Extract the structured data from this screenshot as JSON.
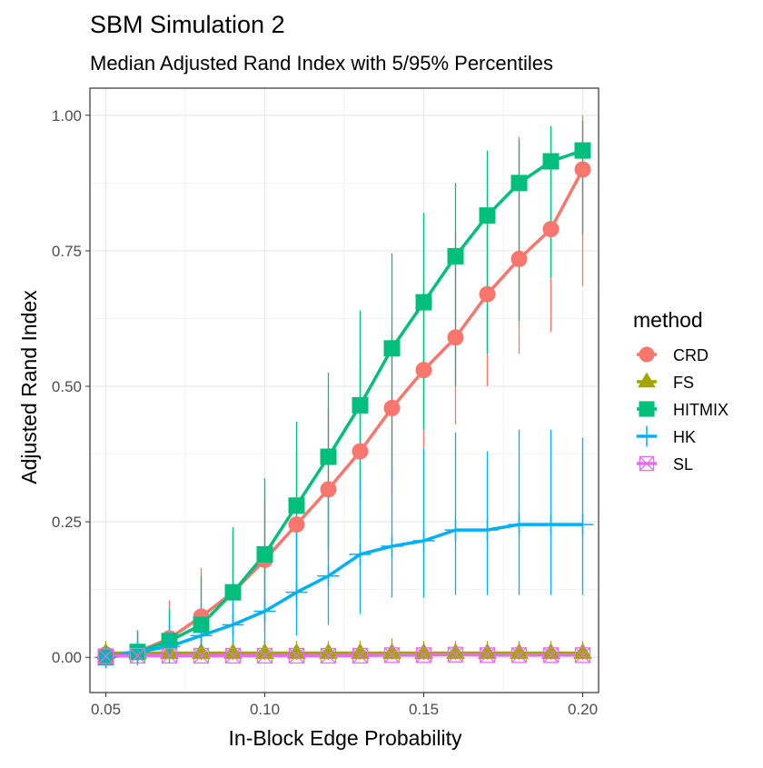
{
  "chart_data": {
    "type": "line",
    "title": "SBM Simulation 2",
    "subtitle": "Median Adjusted Rand Index with 5/95% Percentiles",
    "xlabel": "In-Block Edge Probability",
    "ylabel": "Adjusted Rand Index",
    "xlim": [
      0.045,
      0.205
    ],
    "ylim": [
      -0.065,
      1.05
    ],
    "x_ticks": [
      0.05,
      0.1,
      0.15,
      0.2
    ],
    "x_tick_labels": [
      "0.05",
      "0.10",
      "0.15",
      "0.20"
    ],
    "y_ticks": [
      0.0,
      0.25,
      0.5,
      0.75,
      1.0
    ],
    "y_tick_labels": [
      "0.00",
      "0.25",
      "0.50",
      "0.75",
      "1.00"
    ],
    "grid": true,
    "legend": {
      "title": "method",
      "position": "right"
    },
    "x": [
      0.05,
      0.06,
      0.07,
      0.08,
      0.09,
      0.1,
      0.11,
      0.12,
      0.13,
      0.14,
      0.15,
      0.16,
      0.17,
      0.18,
      0.19,
      0.2
    ],
    "series": [
      {
        "name": "CRD",
        "color": "#F8766D",
        "marker": "circle",
        "median": [
          0.005,
          0.01,
          0.035,
          0.075,
          0.12,
          0.18,
          0.245,
          0.31,
          0.38,
          0.46,
          0.53,
          0.59,
          0.67,
          0.735,
          0.79,
          0.9
        ],
        "lower": [
          -0.01,
          -0.01,
          -0.005,
          0.01,
          0.02,
          0.05,
          0.09,
          0.18,
          0.22,
          0.3,
          0.37,
          0.43,
          0.5,
          0.56,
          0.6,
          0.685
        ],
        "upper": [
          0.02,
          0.05,
          0.105,
          0.165,
          0.23,
          0.29,
          0.38,
          0.46,
          0.55,
          0.6,
          0.7,
          0.78,
          0.86,
          0.96,
          0.98,
          1.0
        ]
      },
      {
        "name": "FS",
        "color": "#A3A500",
        "marker": "triangle",
        "median": [
          0.008,
          0.008,
          0.008,
          0.008,
          0.008,
          0.008,
          0.008,
          0.008,
          0.008,
          0.008,
          0.008,
          0.008,
          0.008,
          0.008,
          0.008,
          0.008
        ],
        "lower": [
          0.0,
          0.0,
          0.0,
          0.0,
          0.0,
          0.0,
          0.0,
          0.0,
          0.0,
          0.0,
          0.0,
          0.0,
          0.0,
          0.0,
          0.0,
          0.0
        ],
        "upper": [
          0.03,
          0.03,
          0.03,
          0.03,
          0.03,
          0.03,
          0.03,
          0.03,
          0.03,
          0.035,
          0.03,
          0.03,
          0.03,
          0.03,
          0.03,
          0.03
        ]
      },
      {
        "name": "HITMIX",
        "color": "#00BF7D",
        "marker": "square",
        "median": [
          0.0,
          0.01,
          0.03,
          0.06,
          0.12,
          0.19,
          0.28,
          0.37,
          0.465,
          0.57,
          0.655,
          0.74,
          0.815,
          0.875,
          0.915,
          0.935
        ],
        "lower": [
          -0.01,
          -0.01,
          0.0,
          0.02,
          0.04,
          0.08,
          0.12,
          0.2,
          0.29,
          0.33,
          0.42,
          0.5,
          0.56,
          0.62,
          0.7,
          0.78
        ],
        "upper": [
          0.02,
          0.045,
          0.09,
          0.15,
          0.24,
          0.33,
          0.435,
          0.525,
          0.64,
          0.745,
          0.82,
          0.875,
          0.935,
          0.955,
          0.98,
          0.99
        ]
      },
      {
        "name": "HK",
        "color": "#00B0F6",
        "marker": "plus",
        "median": [
          0.0,
          0.01,
          0.02,
          0.04,
          0.06,
          0.085,
          0.12,
          0.15,
          0.19,
          0.205,
          0.215,
          0.235,
          0.235,
          0.245,
          0.245,
          0.245
        ],
        "lower": [
          -0.02,
          -0.015,
          -0.01,
          -0.005,
          0.0,
          0.01,
          0.04,
          0.06,
          0.08,
          0.11,
          0.11,
          0.115,
          0.115,
          0.115,
          0.115,
          0.115
        ],
        "upper": [
          0.02,
          0.05,
          0.07,
          0.1,
          0.14,
          0.2,
          0.235,
          0.31,
          0.33,
          0.35,
          0.385,
          0.415,
          0.38,
          0.42,
          0.42,
          0.405
        ]
      },
      {
        "name": "SL",
        "color": "#E76BF3",
        "marker": "boxcross",
        "median": [
          0.002,
          0.003,
          0.003,
          0.003,
          0.003,
          0.003,
          0.003,
          0.003,
          0.003,
          0.004,
          0.004,
          0.005,
          0.004,
          0.004,
          0.004,
          0.004
        ],
        "lower": [
          -0.005,
          -0.005,
          -0.005,
          -0.005,
          -0.005,
          -0.005,
          -0.005,
          -0.005,
          -0.005,
          -0.005,
          -0.005,
          -0.005,
          -0.005,
          -0.005,
          -0.005,
          -0.005
        ],
        "upper": [
          0.01,
          0.01,
          0.01,
          0.01,
          0.01,
          0.01,
          0.01,
          0.01,
          0.01,
          0.01,
          0.01,
          0.01,
          0.01,
          0.01,
          0.01,
          0.01
        ]
      }
    ]
  }
}
